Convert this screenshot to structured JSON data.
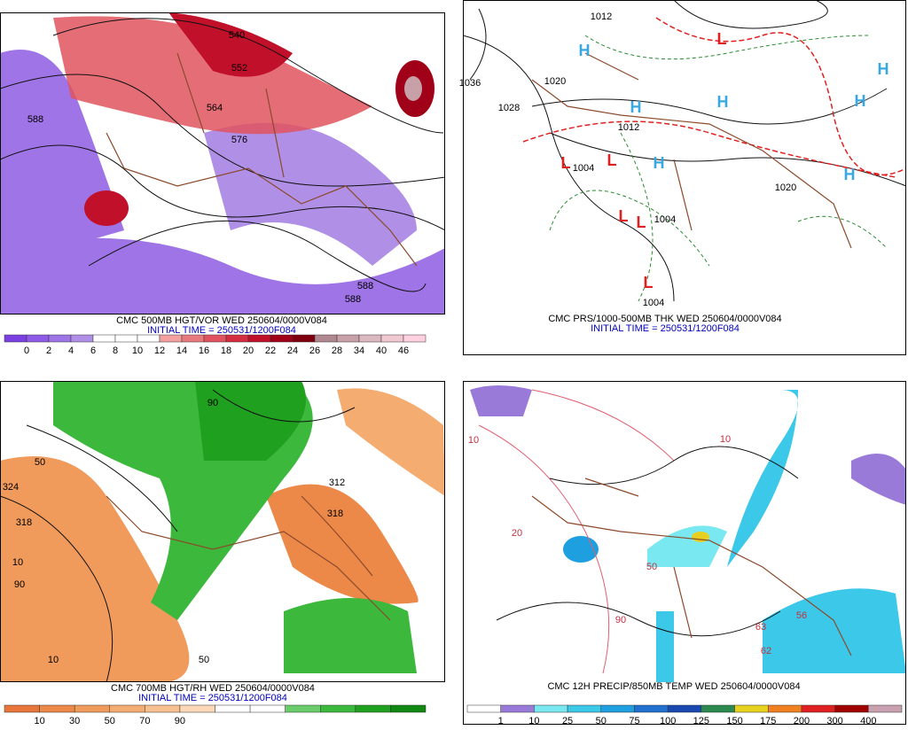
{
  "panels": [
    {
      "title": "CMC 500MB HGT/VOR WED 250604/0000V084",
      "init": "INITIAL TIME = 250531/1200F084",
      "scale": {
        "labels": [
          0,
          2,
          4,
          6,
          8,
          10,
          12,
          14,
          16,
          18,
          20,
          22,
          24,
          26,
          28,
          34,
          40,
          46
        ],
        "colors": [
          "#7b3fe4",
          "#8f5ae8",
          "#9f74e6",
          "#b08fe6",
          "#ffffff",
          "#ffffff",
          "#ffffff",
          "#f2a0a0",
          "#e87a7e",
          "#e0535e",
          "#d42d3f",
          "#c0102a",
          "#a00018",
          "#800010",
          "#b08890",
          "#c8a0a8",
          "#dcb8c0",
          "#f0c8d0",
          "#ffd0e0"
        ]
      },
      "contour_labels": [
        "540",
        "552",
        "564",
        "576",
        "588",
        "588",
        "588"
      ],
      "highs": [],
      "lows": []
    },
    {
      "title": "CMC PRS/1000-500MB THK WED 250604/0000V084",
      "init": "INITIAL TIME = 250531/1200F084",
      "contour_labels": [
        "1012",
        "1020",
        "1028",
        "1036",
        "1004",
        "1004",
        "1004",
        "1012",
        "1020"
      ],
      "highs": [
        "H",
        "H",
        "H",
        "H",
        "H",
        "H",
        "H"
      ],
      "lows": [
        "L",
        "L",
        "L",
        "L",
        "L",
        "L"
      ]
    },
    {
      "title": "CMC 700MB HGT/RH WED 250604/0000V084",
      "init": "INITIAL TIME = 250531/1200F084",
      "scale": {
        "labels": [
          10,
          30,
          50,
          70,
          90
        ],
        "colors": [
          "#e8763a",
          "#ec8848",
          "#f09a5c",
          "#f4ac70",
          "#f8c090",
          "#fcd8b8",
          "#ffffff",
          "#ffffff",
          "#6acc6a",
          "#3cb83c",
          "#1fa01f",
          "#118811"
        ]
      },
      "contour_labels": [
        "324",
        "318",
        "10",
        "10",
        "50",
        "50",
        "90",
        "90",
        "312",
        "318"
      ],
      "highs": [],
      "lows": []
    },
    {
      "title": "CMC 12H PRECIP/850MB TEMP WED 250604/0000V084",
      "scale": {
        "labels": [
          1,
          10,
          25,
          50,
          75,
          100,
          125,
          150,
          175,
          200,
          300,
          400
        ],
        "colors": [
          "#ffffff",
          "#9a7ad8",
          "#7ae8f0",
          "#3cc8e8",
          "#1ea0e0",
          "#2070d0",
          "#1848b0",
          "#2a8a50",
          "#e8d020",
          "#f08020",
          "#e02020",
          "#a00000",
          "#c8a0b0"
        ]
      },
      "contour_labels": [
        "10",
        "10",
        "20",
        "50",
        "90",
        "63",
        "56",
        "62"
      ],
      "highs": [],
      "lows": []
    }
  ]
}
